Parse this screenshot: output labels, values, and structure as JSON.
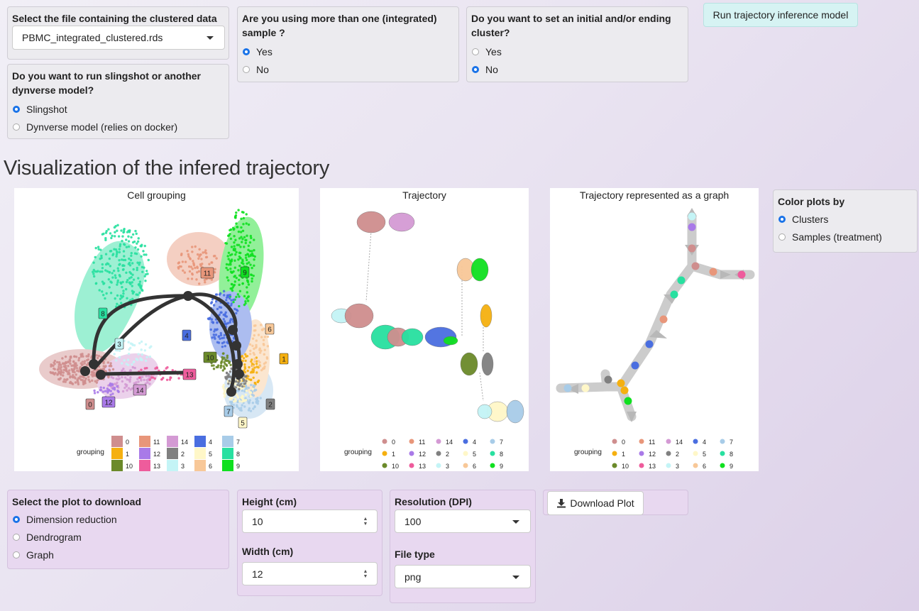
{
  "top": {
    "file_label": "Select the file containing the clustered data",
    "file_value": "PBMC_integrated_clustered.rds",
    "integrated_label": "Are you using more than one (integrated) sample ?",
    "integrated_options": [
      "Yes",
      "No"
    ],
    "integrated_selected": "Yes",
    "endpoint_label": "Do you want to set an initial and/or ending cluster?",
    "endpoint_options": [
      "Yes",
      "No"
    ],
    "endpoint_selected": "No",
    "run_button": "Run trajectory inference model",
    "model_label": "Do you want to run slingshot or another dynverse model?",
    "model_options": [
      "Slingshot",
      "Dynverse model (relies on docker)"
    ],
    "model_selected": "Slingshot"
  },
  "section_title": "Visualization of the infered trajectory",
  "plots": {
    "cell_grouping_title": "Cell grouping",
    "trajectory_title": "Trajectory",
    "graph_title": "Trajectory represented as a graph",
    "legend_title": "grouping"
  },
  "color_panel": {
    "label": "Color plots by",
    "options": [
      "Clusters",
      "Samples (treatment)"
    ],
    "selected": "Clusters"
  },
  "download": {
    "plot_label": "Select the plot to download",
    "plot_options": [
      "Dimension reduction",
      "Dendrogram",
      "Graph"
    ],
    "plot_selected": "Dimension reduction",
    "height_label": "Height (cm)",
    "height_value": "10",
    "width_label": "Width (cm)",
    "width_value": "12",
    "resolution_label": "Resolution (DPI)",
    "resolution_value": "100",
    "filetype_label": "File type",
    "filetype_value": "png",
    "download_button": "Download Plot"
  },
  "legend": {
    "rows": [
      [
        {
          "label": "0",
          "color": "#cf8e8e"
        },
        {
          "label": "11",
          "color": "#e8967a"
        },
        {
          "label": "14",
          "color": "#d49ad4"
        },
        {
          "label": "4",
          "color": "#4a6ee0"
        },
        {
          "label": "7",
          "color": "#a8cce8"
        }
      ],
      [
        {
          "label": "1",
          "color": "#f5b010"
        },
        {
          "label": "12",
          "color": "#a97ae8"
        },
        {
          "label": "2",
          "color": "#808080"
        },
        {
          "label": "5",
          "color": "#fff7c8"
        },
        {
          "label": "8",
          "color": "#28e0a0"
        }
      ],
      [
        {
          "label": "10",
          "color": "#6b8a2a"
        },
        {
          "label": "13",
          "color": "#ee5c9c"
        },
        {
          "label": "3",
          "color": "#c4f4f6"
        },
        {
          "label": "6",
          "color": "#f8c898"
        },
        {
          "label": "9",
          "color": "#10e020"
        }
      ]
    ]
  },
  "cluster_labels": [
    "0",
    "1",
    "2",
    "3",
    "4",
    "5",
    "6",
    "7",
    "8",
    "9",
    "10",
    "11",
    "12",
    "13",
    "14"
  ],
  "colors": {
    "accent": "#1a73e8",
    "panel_lavender": "#e8d8f0",
    "run_button_bg": "#d6f3f3"
  }
}
